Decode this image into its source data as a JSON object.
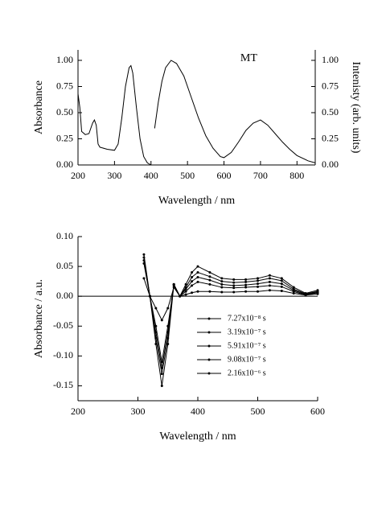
{
  "chart_data": [
    {
      "type": "line",
      "xlabel": "Wavelength / nm",
      "ylabel": "Absorbance",
      "y2label": "Intenisty (arb. units)",
      "annotation": "MT",
      "xlim": [
        200,
        850
      ],
      "xticks": [
        200,
        300,
        400,
        500,
        600,
        700,
        800
      ],
      "ylim": [
        0,
        1.1
      ],
      "yticks": [
        {
          "value": 0,
          "label": "0.00"
        },
        {
          "value": 0.25,
          "label": "0.25"
        },
        {
          "value": 0.5,
          "label": "0.50"
        },
        {
          "value": 0.75,
          "label": "0.75"
        },
        {
          "value": 1,
          "label": "1.00"
        }
      ],
      "y2lim": [
        0,
        1.1
      ],
      "y2ticks": [
        {
          "value": 0,
          "label": "0.00"
        },
        {
          "value": 0.25,
          "label": "0.25"
        },
        {
          "value": 0.5,
          "label": "0.50"
        },
        {
          "value": 0.75,
          "label": "0.75"
        },
        {
          "value": 1,
          "label": "1.00"
        }
      ],
      "series": [
        {
          "color": "#000000",
          "x": [
            200,
            205,
            210,
            220,
            230,
            240,
            245,
            250,
            255,
            260,
            280,
            300,
            310,
            320,
            330,
            340,
            345,
            350,
            360,
            370,
            380,
            390,
            400
          ],
          "values": [
            0.68,
            0.55,
            0.32,
            0.29,
            0.3,
            0.4,
            0.43,
            0.38,
            0.2,
            0.17,
            0.15,
            0.14,
            0.2,
            0.45,
            0.75,
            0.93,
            0.95,
            0.88,
            0.55,
            0.25,
            0.08,
            0.02,
            0.0
          ]
        },
        {
          "color": "#000000",
          "axis": "y2",
          "x": [
            410,
            420,
            430,
            440,
            455,
            470,
            490,
            510,
            530,
            550,
            570,
            590,
            600,
            620,
            640,
            660,
            680,
            700,
            720,
            740,
            760,
            780,
            800,
            830,
            850
          ],
          "values": [
            0.35,
            0.6,
            0.8,
            0.93,
            1.0,
            0.97,
            0.85,
            0.65,
            0.45,
            0.28,
            0.16,
            0.08,
            0.07,
            0.12,
            0.22,
            0.33,
            0.4,
            0.43,
            0.38,
            0.3,
            0.22,
            0.15,
            0.09,
            0.04,
            0.02
          ]
        }
      ]
    },
    {
      "type": "line",
      "xlabel": "Wavelength / nm",
      "ylabel": "Absorbance / a.u.",
      "xlim": [
        200,
        600
      ],
      "xticks": [
        200,
        300,
        400,
        500,
        600
      ],
      "ylim": [
        -0.175,
        0.1
      ],
      "yticks": [
        {
          "value": -0.15,
          "label": "-0.15"
        },
        {
          "value": -0.1,
          "label": "-0.10"
        },
        {
          "value": -0.05,
          "label": "-0.05"
        },
        {
          "value": 0,
          "label": "0.00"
        },
        {
          "value": 0.05,
          "label": "0.05"
        },
        {
          "value": 0.1,
          "label": "0.10"
        }
      ],
      "zero_line": true,
      "legend": "center right",
      "x": [
        310,
        320,
        330,
        340,
        350,
        360,
        370,
        380,
        390,
        400,
        420,
        440,
        460,
        480,
        500,
        520,
        540,
        560,
        580,
        600
      ],
      "series": [
        {
          "name": "7.27x10⁻⁸ s",
          "color": "#000000",
          "values": [
            0.07,
            0.0,
            -0.08,
            -0.15,
            -0.08,
            0.02,
            0.0,
            0.02,
            0.04,
            0.05,
            0.04,
            0.03,
            0.028,
            0.028,
            0.03,
            0.035,
            0.03,
            0.015,
            0.005,
            0.01
          ]
        },
        {
          "name": "3.19x10⁻⁷ s",
          "color": "#000000",
          "values": [
            0.065,
            0.0,
            -0.07,
            -0.13,
            -0.07,
            0.02,
            0.0,
            0.015,
            0.032,
            0.04,
            0.033,
            0.025,
            0.023,
            0.024,
            0.026,
            0.03,
            0.026,
            0.012,
            0.004,
            0.008
          ]
        },
        {
          "name": "5.91x10⁻⁷ s",
          "color": "#000000",
          "values": [
            0.06,
            0.0,
            -0.06,
            -0.12,
            -0.06,
            0.02,
            0.0,
            0.012,
            0.025,
            0.032,
            0.027,
            0.02,
            0.018,
            0.019,
            0.021,
            0.024,
            0.021,
            0.01,
            0.003,
            0.007
          ]
        },
        {
          "name": "9.08x10⁻⁷ s",
          "color": "#000000",
          "values": [
            0.055,
            0.0,
            -0.05,
            -0.11,
            -0.05,
            0.018,
            0.0,
            0.008,
            0.018,
            0.024,
            0.02,
            0.015,
            0.014,
            0.015,
            0.016,
            0.018,
            0.016,
            0.008,
            0.002,
            0.006
          ]
        },
        {
          "name": "2.16x10⁻⁶ s",
          "color": "#000000",
          "values": [
            0.03,
            0.0,
            -0.02,
            -0.04,
            -0.02,
            0.015,
            0.0,
            0.003,
            0.006,
            0.008,
            0.008,
            0.007,
            0.007,
            0.008,
            0.008,
            0.01,
            0.009,
            0.005,
            0.002,
            0.004
          ]
        }
      ]
    }
  ]
}
